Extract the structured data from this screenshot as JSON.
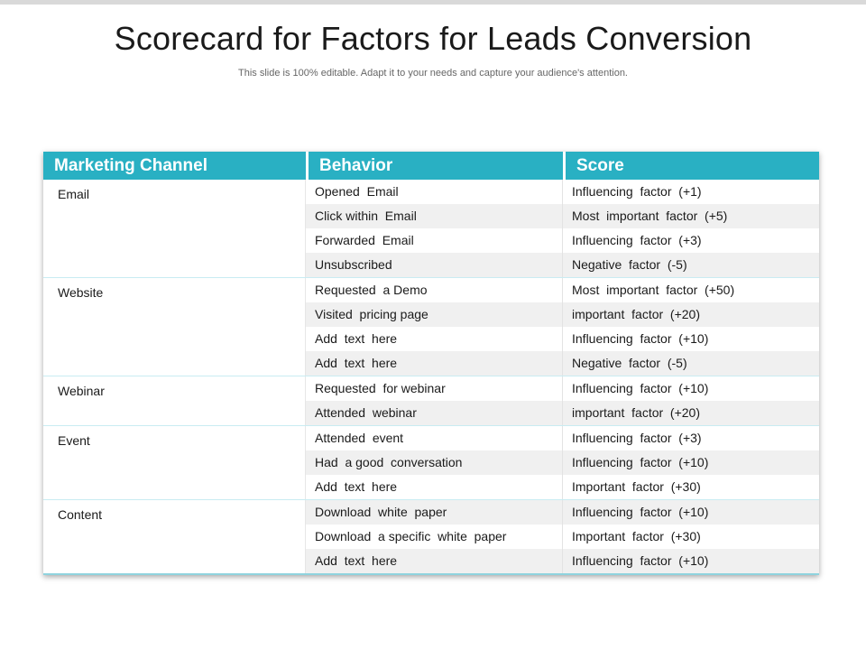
{
  "slide": {
    "title": "Scorecard for Factors for Leads Conversion",
    "subtitle": "This slide is 100% editable. Adapt it to your needs and capture your audience's attention."
  },
  "table": {
    "headers": [
      "Marketing Channel",
      "Behavior",
      "Score"
    ],
    "groups": [
      {
        "channel": "Email",
        "rows": [
          {
            "behavior": "Opened  Email",
            "score": "Influencing  factor  (+1)"
          },
          {
            "behavior": "Click within  Email",
            "score": "Most  important  factor  (+5)"
          },
          {
            "behavior": "Forwarded  Email",
            "score": "Influencing  factor  (+3)"
          },
          {
            "behavior": "Unsubscribed",
            "score": "Negative  factor  (-5)"
          }
        ]
      },
      {
        "channel": "Website",
        "rows": [
          {
            "behavior": "Requested  a Demo",
            "score": "Most  important  factor  (+50)"
          },
          {
            "behavior": "Visited  pricing page",
            "score": "important  factor  (+20)"
          },
          {
            "behavior": "Add  text  here",
            "score": "Influencing  factor  (+10)"
          },
          {
            "behavior": "Add  text  here",
            "score": "Negative  factor  (-5)"
          }
        ]
      },
      {
        "channel": "Webinar",
        "rows": [
          {
            "behavior": "Requested  for webinar",
            "score": "Influencing  factor  (+10)"
          },
          {
            "behavior": "Attended  webinar",
            "score": "important  factor  (+20)"
          }
        ]
      },
      {
        "channel": "Event",
        "rows": [
          {
            "behavior": "Attended  event",
            "score": "Influencing  factor  (+3)"
          },
          {
            "behavior": "Had  a good  conversation",
            "score": "Influencing  factor  (+10)"
          },
          {
            "behavior": "Add  text  here",
            "score": "Important  factor  (+30)"
          }
        ]
      },
      {
        "channel": "Content",
        "rows": [
          {
            "behavior": "Download  white  paper",
            "score": "Influencing  factor  (+10)"
          },
          {
            "behavior": "Download  a specific  white  paper",
            "score": "Important  factor  (+30)"
          },
          {
            "behavior": "Add  text  here",
            "score": "Influencing  factor  (+10)"
          }
        ]
      }
    ]
  }
}
